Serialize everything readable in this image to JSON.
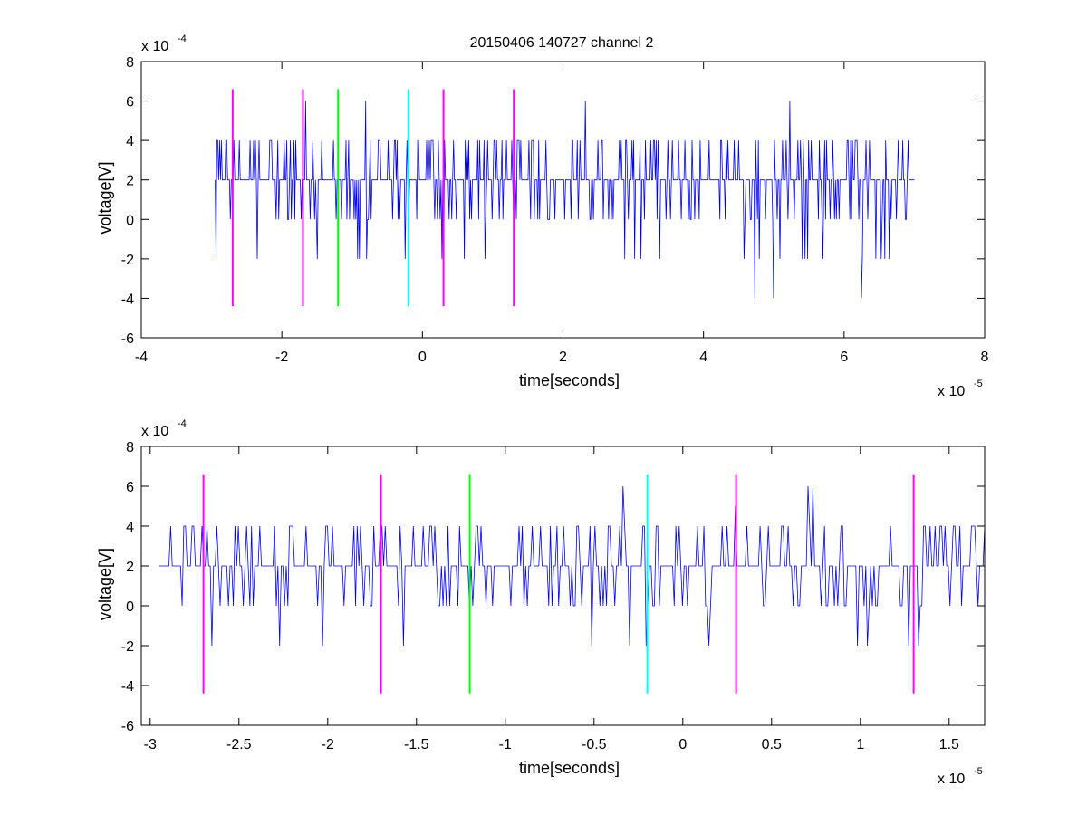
{
  "title": "20150406 140727 channel 2",
  "colors": {
    "signal": "#0000ff",
    "marker_magenta": "#ff00ff",
    "marker_green": "#00ff00",
    "marker_cyan": "#00ffff",
    "axes": "#000000"
  },
  "chart_data": [
    {
      "type": "line",
      "title": "20150406 140727 channel 2",
      "xlabel": "time[seconds]",
      "ylabel": "voltage[V]",
      "x_exponent_label": "x 10",
      "x_exponent": "-5",
      "y_exponent_label": "x 10",
      "y_exponent": "-4",
      "xlim": [
        -4,
        8
      ],
      "ylim": [
        -6,
        8
      ],
      "xticks": [
        -4,
        -2,
        0,
        2,
        4,
        6,
        8
      ],
      "yticks": [
        -6,
        -4,
        -2,
        0,
        2,
        4,
        6,
        8
      ],
      "xtick_labels": [
        "-4",
        "-2",
        "0",
        "2",
        "4",
        "6",
        "8"
      ],
      "ytick_labels": [
        "-6",
        "-4",
        "-2",
        "0",
        "2",
        "4",
        "6",
        "8"
      ],
      "grid": false,
      "signal": {
        "x_start": -2.95,
        "x_end": 7.0,
        "levels": [
          -4,
          -2,
          0,
          2,
          4,
          6
        ],
        "sample_values": [
          4,
          2,
          0,
          2,
          4,
          2,
          0,
          2,
          4,
          0,
          2,
          4,
          2,
          2,
          0,
          4,
          2,
          -2,
          2,
          4,
          0,
          2,
          2,
          4,
          0,
          2,
          4,
          2,
          0,
          2,
          4,
          6,
          2,
          0,
          4,
          2,
          -2,
          2,
          4,
          0,
          2,
          2,
          4,
          0,
          2,
          4,
          2,
          0,
          2,
          4,
          2,
          0,
          2,
          6,
          2,
          0,
          4,
          2,
          -2,
          2,
          4,
          0,
          2,
          6,
          2,
          0,
          4,
          2,
          2,
          0,
          2,
          4,
          0,
          -2,
          2,
          4,
          2,
          0,
          4,
          2,
          -4,
          2,
          4,
          0,
          2,
          4,
          6,
          2,
          4,
          2,
          0,
          -2,
          2
        ]
      },
      "markers": [
        {
          "x": -2.7,
          "color": "magenta",
          "y_range": [
            -4.4,
            6.6
          ]
        },
        {
          "x": -1.7,
          "color": "magenta",
          "y_range": [
            -4.4,
            6.6
          ]
        },
        {
          "x": -1.2,
          "color": "green",
          "y_range": [
            -4.4,
            6.6
          ]
        },
        {
          "x": -0.2,
          "color": "cyan",
          "y_range": [
            -4.4,
            6.6
          ]
        },
        {
          "x": 0.3,
          "color": "magenta",
          "y_range": [
            -4.4,
            6.6
          ]
        },
        {
          "x": 1.3,
          "color": "magenta",
          "y_range": [
            -4.4,
            6.6
          ]
        }
      ]
    },
    {
      "type": "line",
      "xlabel": "time[seconds]",
      "ylabel": "voltage[V]",
      "x_exponent_label": "x 10",
      "x_exponent": "-5",
      "y_exponent_label": "x 10",
      "y_exponent": "-4",
      "xlim": [
        -3.05,
        1.7
      ],
      "ylim": [
        -6,
        8
      ],
      "xticks": [
        -3,
        -2.5,
        -2,
        -1.5,
        -1,
        -0.5,
        0,
        0.5,
        1,
        1.5
      ],
      "yticks": [
        -6,
        -4,
        -2,
        0,
        2,
        4,
        6,
        8
      ],
      "xtick_labels": [
        "-3",
        "-2.5",
        "-2",
        "-1.5",
        "-1",
        "-0.5",
        "0",
        "0.5",
        "1",
        "1.5"
      ],
      "ytick_labels": [
        "-6",
        "-4",
        "-2",
        "0",
        "2",
        "4",
        "6",
        "8"
      ],
      "grid": false,
      "signal": {
        "x_start": -2.95,
        "x_end": 1.7,
        "levels": [
          -2,
          0,
          2,
          4,
          6
        ],
        "notable_points": [
          {
            "x": -2.03,
            "y": -2
          },
          {
            "x": -0.34,
            "y": 6
          },
          {
            "x": -0.21,
            "y": -2
          },
          {
            "x": 0.15,
            "y": -2
          },
          {
            "x": 0.3,
            "y": 5
          },
          {
            "x": 0.98,
            "y": -2
          },
          {
            "x": 1.27,
            "y": -2
          }
        ],
        "sample_values": [
          4,
          2,
          0,
          2,
          0,
          4,
          2,
          0,
          2,
          2,
          0,
          4,
          2,
          0,
          2,
          4,
          2,
          4,
          0,
          2,
          2,
          4,
          0,
          2,
          4,
          2,
          0,
          2,
          4,
          2,
          0,
          4,
          2,
          -2,
          2,
          4,
          0,
          2,
          2,
          4,
          0,
          2,
          4,
          2,
          0,
          2,
          4,
          2,
          0,
          2,
          2,
          0,
          4,
          2,
          0,
          2,
          4,
          2,
          2,
          0,
          2,
          4,
          0,
          2,
          2,
          0,
          4,
          2,
          0,
          2,
          4,
          2,
          6,
          2,
          -2,
          2,
          4,
          0,
          2,
          2,
          4,
          0,
          2,
          4,
          2,
          0,
          2,
          2,
          4,
          0,
          2,
          4,
          2,
          0,
          2,
          4,
          2,
          0,
          2,
          4,
          2,
          0,
          2
        ]
      },
      "markers": [
        {
          "x": -2.7,
          "color": "magenta",
          "y_range": [
            -4.4,
            6.6
          ]
        },
        {
          "x": -1.7,
          "color": "magenta",
          "y_range": [
            -4.4,
            6.6
          ]
        },
        {
          "x": -1.2,
          "color": "green",
          "y_range": [
            -4.4,
            6.6
          ]
        },
        {
          "x": -0.2,
          "color": "cyan",
          "y_range": [
            -4.4,
            6.6
          ]
        },
        {
          "x": 0.3,
          "color": "magenta",
          "y_range": [
            -4.4,
            6.6
          ]
        },
        {
          "x": 1.3,
          "color": "magenta",
          "y_range": [
            -4.4,
            6.6
          ]
        }
      ]
    }
  ]
}
